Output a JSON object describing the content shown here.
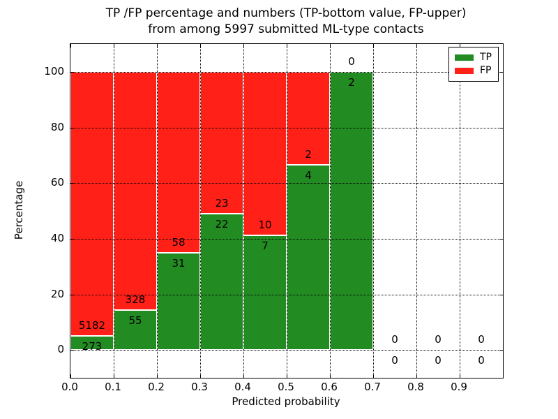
{
  "title_line1": "TP /FP percentage and numbers (TP-bottom value, FP-upper)",
  "title_line2": "from among 5997 submitted ML-type contacts",
  "chart_data": {
    "type": "bar",
    "stacked": true,
    "title": "TP /FP percentage and numbers (TP-bottom value, FP-upper) from among 5997 submitted ML-type contacts",
    "xlabel": "Predicted probability",
    "ylabel": "Percentage",
    "xlim": [
      0.0,
      1.0
    ],
    "ylim": [
      -10,
      110
    ],
    "bin_width": 0.1,
    "grid": "dotted",
    "xticks": [
      {
        "value": 0.0,
        "label": "0.0"
      },
      {
        "value": 0.1,
        "label": "0.1"
      },
      {
        "value": 0.2,
        "label": "0.2"
      },
      {
        "value": 0.3,
        "label": "0.3"
      },
      {
        "value": 0.4,
        "label": "0.4"
      },
      {
        "value": 0.5,
        "label": "0.5"
      },
      {
        "value": 0.6,
        "label": "0.6"
      },
      {
        "value": 0.7,
        "label": "0.7"
      },
      {
        "value": 0.8,
        "label": "0.8"
      },
      {
        "value": 0.9,
        "label": "0.9"
      }
    ],
    "yticks": [
      {
        "value": 0,
        "label": "0"
      },
      {
        "value": 20,
        "label": "20"
      },
      {
        "value": 40,
        "label": "40"
      },
      {
        "value": 60,
        "label": "60"
      },
      {
        "value": 80,
        "label": "80"
      },
      {
        "value": 100,
        "label": "100"
      }
    ],
    "colors": {
      "tp": "#228b22",
      "fp": "#ff2018"
    },
    "legend": {
      "position": "upper right",
      "entries": [
        {
          "label": "TP",
          "color_key": "tp"
        },
        {
          "label": "FP",
          "color_key": "fp"
        }
      ]
    },
    "bins": [
      {
        "range": [
          0.0,
          0.1
        ],
        "tp_count": 273,
        "fp_count": 5182,
        "tp_pct": 5.0,
        "total_pct": 100
      },
      {
        "range": [
          0.1,
          0.2
        ],
        "tp_count": 55,
        "fp_count": 328,
        "tp_pct": 14.36,
        "total_pct": 100
      },
      {
        "range": [
          0.2,
          0.3
        ],
        "tp_count": 31,
        "fp_count": 58,
        "tp_pct": 34.83,
        "total_pct": 100
      },
      {
        "range": [
          0.3,
          0.4
        ],
        "tp_count": 22,
        "fp_count": 23,
        "tp_pct": 48.89,
        "total_pct": 100
      },
      {
        "range": [
          0.4,
          0.5
        ],
        "tp_count": 7,
        "fp_count": 10,
        "tp_pct": 41.18,
        "total_pct": 100
      },
      {
        "range": [
          0.5,
          0.6
        ],
        "tp_count": 4,
        "fp_count": 2,
        "tp_pct": 66.67,
        "total_pct": 100
      },
      {
        "range": [
          0.6,
          0.7
        ],
        "tp_count": 2,
        "fp_count": 0,
        "tp_pct": 100.0,
        "total_pct": 100
      },
      {
        "range": [
          0.7,
          0.8
        ],
        "tp_count": 0,
        "fp_count": 0,
        "tp_pct": 0,
        "total_pct": 0
      },
      {
        "range": [
          0.8,
          0.9
        ],
        "tp_count": 0,
        "fp_count": 0,
        "tp_pct": 0,
        "total_pct": 0
      },
      {
        "range": [
          0.9,
          1.0
        ],
        "tp_count": 0,
        "fp_count": 0,
        "tp_pct": 0,
        "total_pct": 0
      }
    ]
  }
}
